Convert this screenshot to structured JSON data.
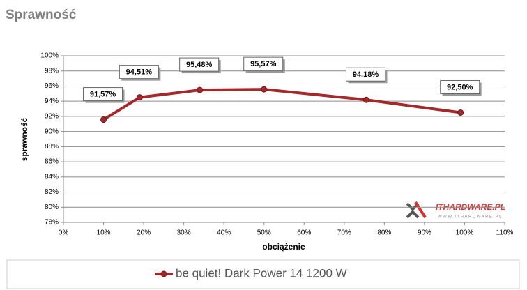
{
  "chart_data": {
    "type": "line",
    "title": "Sprawność",
    "x_label": "obciążenie",
    "y_label": "sprawność",
    "x": [
      10,
      19,
      34,
      50,
      75.5,
      99
    ],
    "series": [
      {
        "name": "be quiet! Dark Power 14 1200 W",
        "color": "#a3292b",
        "values": [
          91.57,
          94.51,
          95.48,
          95.57,
          94.18,
          92.5
        ],
        "value_labels": [
          "91,57%",
          "94,51%",
          "95,48%",
          "95,57%",
          "94,18%",
          "92,50%"
        ]
      }
    ],
    "xlim": [
      0,
      110
    ],
    "xticks": [
      {
        "value": 0,
        "label": "0%"
      },
      {
        "value": 10,
        "label": "10%"
      },
      {
        "value": 20,
        "label": "20%"
      },
      {
        "value": 30,
        "label": "30%"
      },
      {
        "value": 40,
        "label": "40%"
      },
      {
        "value": 50,
        "label": "50%"
      },
      {
        "value": 60,
        "label": "60%"
      },
      {
        "value": 70,
        "label": "70%"
      },
      {
        "value": 80,
        "label": "80%"
      },
      {
        "value": 90,
        "label": "90%"
      },
      {
        "value": 100,
        "label": "100%"
      },
      {
        "value": 110,
        "label": "110%"
      }
    ],
    "ylim": [
      78,
      100
    ],
    "yticks": [
      {
        "value": 78,
        "label": "78%"
      },
      {
        "value": 80,
        "label": "80%"
      },
      {
        "value": 82,
        "label": "82%"
      },
      {
        "value": 84,
        "label": "84%"
      },
      {
        "value": 86,
        "label": "86%"
      },
      {
        "value": 88,
        "label": "88%"
      },
      {
        "value": 90,
        "label": "90%"
      },
      {
        "value": 92,
        "label": "92%"
      },
      {
        "value": 94,
        "label": "94%"
      },
      {
        "value": 96,
        "label": "96%"
      },
      {
        "value": 98,
        "label": "98%"
      },
      {
        "value": 100,
        "label": "100%"
      }
    ],
    "grid": true,
    "watermark": {
      "brand": "ITHARDWARE.PL",
      "url": "WWW.ITHARDWARE.PL"
    }
  }
}
